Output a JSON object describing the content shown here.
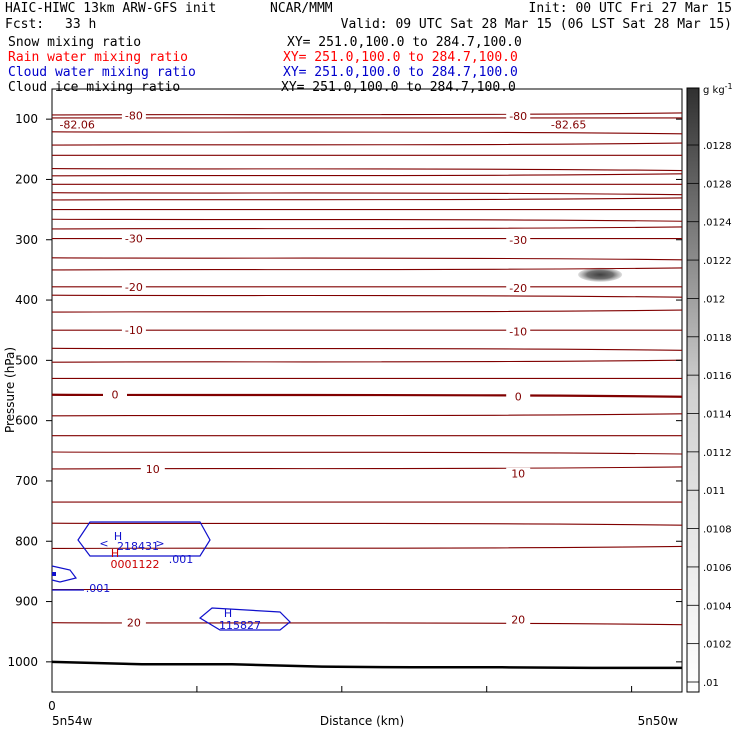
{
  "header": {
    "model_title": "HAIC-HIWC 13km ARW-GFS init",
    "center": "NCAR/MMM",
    "init": "Init: 00 UTC Fri 27 Mar 15",
    "fcst_label": "Fcst:",
    "fcst_value": "33 h",
    "valid": "Valid: 09 UTC Sat 28 Mar 15 (06 LST Sat 28 Mar 15)"
  },
  "fields": [
    {
      "name": "Snow mixing ratio",
      "xy": "XY= 251.0,100.0 to 284.7,100.0",
      "color": "#000000"
    },
    {
      "name": "Rain water mixing ratio",
      "xy": "XY= 251.0,100.0 to 284.7,100.0",
      "color": "#ff0000"
    },
    {
      "name": "Cloud water mixing ratio",
      "xy": "XY= 251.0,100.0 to 284.7,100.0",
      "color": "#0000cc"
    },
    {
      "name": "Cloud ice mixing ratio",
      "xy": "XY= 251.0,100.0 to 284.7,100.0",
      "color": "#000000"
    }
  ],
  "chart_data": {
    "type": "cross-section",
    "ylabel": "Pressure (hPa)",
    "xlabel": "Distance (km)",
    "x_tick_labels": [
      "0"
    ],
    "x_left_label": "5n54w",
    "x_right_label": "5n50w",
    "y_ticks": [
      100,
      200,
      300,
      400,
      500,
      600,
      700,
      800,
      900,
      1000
    ],
    "ylim": [
      1050,
      50
    ],
    "x_ticks_count": 5,
    "temperature_color": "#800000",
    "isotherm_labels": [
      {
        "value": "-80",
        "p": [
          94,
          95
        ]
      },
      {
        "value": "-30",
        "p": [
          298,
          300
        ]
      },
      {
        "value": "-20",
        "p": [
          378,
          380
        ]
      },
      {
        "value": "-10",
        "p": [
          450,
          452
        ]
      },
      {
        "value": "0",
        "p": [
          557,
          560
        ]
      },
      {
        "value": "10",
        "p": [
          680,
          688
        ]
      },
      {
        "value": "20",
        "p": [
          935,
          930
        ]
      }
    ],
    "isotherm_levels": [
      93,
      98,
      121,
      143,
      160,
      182,
      194,
      208,
      222,
      234,
      250,
      266,
      282,
      298,
      330,
      350,
      378,
      392,
      420,
      450,
      480,
      503,
      530,
      557,
      592,
      625,
      652,
      680,
      735,
      770,
      812,
      880,
      935
    ],
    "extreme_labels": [
      {
        "text": "-82.06",
        "x": 0.04,
        "p": 87
      },
      {
        "text": "-82.65",
        "x": 0.82,
        "p": 87
      }
    ],
    "surface_pressure": [
      1000,
      1004,
      1004,
      1008,
      1009,
      1009,
      1010,
      1010
    ],
    "cloud_water": {
      "color": "#1010cc",
      "contour_label": ".001",
      "max_label": "218431",
      "max_H": "H",
      "max2_label": "115827",
      "max2_H": "H"
    },
    "rain_water": {
      "color": "#cc0000",
      "max_label": "0001122",
      "max_H": "H"
    },
    "colorbar": {
      "unit": "g kg",
      "unit_sup": "-1",
      "ticks": [
        ".0128",
        ".0128",
        ".0124",
        ".0122",
        ".012",
        ".0118",
        ".0116",
        ".0114",
        ".0112",
        ".011",
        ".0108",
        ".0106",
        ".0104",
        ".0102",
        ".01"
      ]
    },
    "ice_blob": {
      "x_frac": 0.87,
      "p": 358,
      "max": 0.013
    }
  }
}
